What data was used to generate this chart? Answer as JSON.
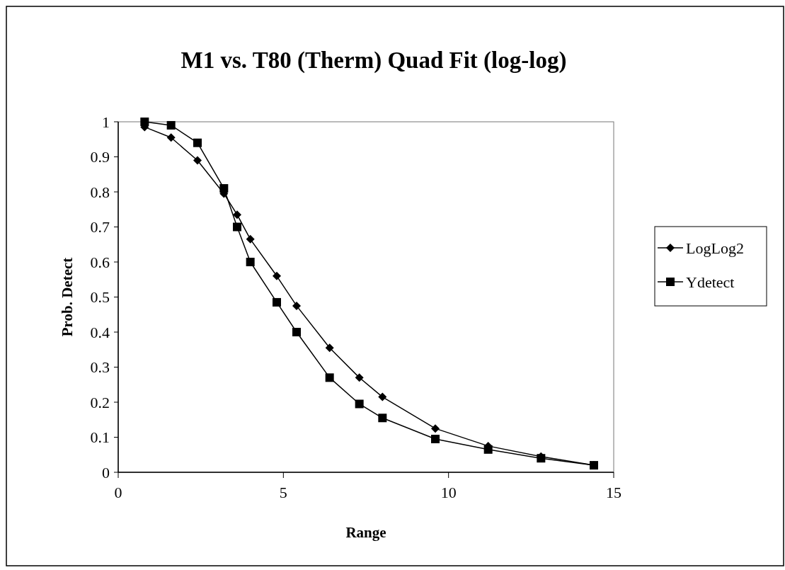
{
  "chart_data": {
    "type": "line",
    "title": "M1 vs. T80 (Therm) Quad Fit (log-log)",
    "xlabel": "Range",
    "ylabel": "Prob. Detect",
    "x": [
      0.8,
      1.6,
      2.4,
      3.2,
      3.6,
      4.0,
      4.8,
      5.4,
      6.4,
      7.3,
      8.0,
      9.6,
      11.2,
      12.8,
      14.4
    ],
    "series": [
      {
        "name": "LogLog2",
        "color": "#000000",
        "marker": "diamond",
        "values": [
          0.985,
          0.955,
          0.89,
          0.795,
          0.735,
          0.665,
          0.56,
          0.475,
          0.355,
          0.27,
          0.215,
          0.125,
          0.075,
          0.045,
          0.02
        ]
      },
      {
        "name": "Ydetect",
        "color": "#000000",
        "marker": "square",
        "values": [
          1.0,
          0.99,
          0.94,
          0.81,
          0.7,
          0.6,
          0.485,
          0.4,
          0.27,
          0.195,
          0.155,
          0.095,
          0.065,
          0.04,
          0.02
        ]
      }
    ],
    "xlim": [
      0,
      15
    ],
    "xticks": [
      0,
      5,
      10,
      15
    ],
    "ylim": [
      0,
      1
    ],
    "yticks": [
      0,
      0.1,
      0.2,
      0.3,
      0.4,
      0.5,
      0.6,
      0.7,
      0.8,
      0.9,
      1
    ],
    "grid": false,
    "legend": "right",
    "line_style": "solid"
  }
}
